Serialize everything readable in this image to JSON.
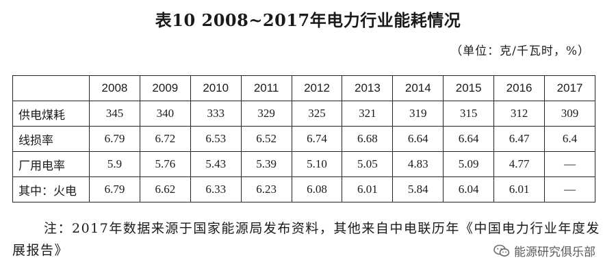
{
  "title": "表10  2008~2017年电力行业能耗情况",
  "unit": "（单位：克/千瓦时，%）",
  "table": {
    "headers": [
      "",
      "2008",
      "2009",
      "2010",
      "2011",
      "2012",
      "2013",
      "2014",
      "2015",
      "2016",
      "2017"
    ],
    "rows": [
      {
        "label": "供电煤耗",
        "values": [
          "345",
          "340",
          "333",
          "329",
          "325",
          "321",
          "319",
          "315",
          "312",
          "309"
        ]
      },
      {
        "label": "线损率",
        "values": [
          "6.79",
          "6.72",
          "6.53",
          "6.52",
          "6.74",
          "6.68",
          "6.64",
          "6.64",
          "6.47",
          "6.4"
        ]
      },
      {
        "label": "厂用电率",
        "values": [
          "5.9",
          "5.76",
          "5.43",
          "5.39",
          "5.10",
          "5.05",
          "4.83",
          "5.09",
          "4.77",
          "—"
        ]
      },
      {
        "label": "其中：火电",
        "values": [
          "6.79",
          "6.62",
          "6.33",
          "6.23",
          "6.08",
          "6.01",
          "5.84",
          "6.04",
          "6.01",
          "—"
        ]
      }
    ]
  },
  "note": "注：2017年数据来源于国家能源局发布资料，其他来自中电联历年《中国电力行业年度发展报告》",
  "watermark": {
    "text": "能源研究俱乐部",
    "icon": "wechat-icon"
  }
}
